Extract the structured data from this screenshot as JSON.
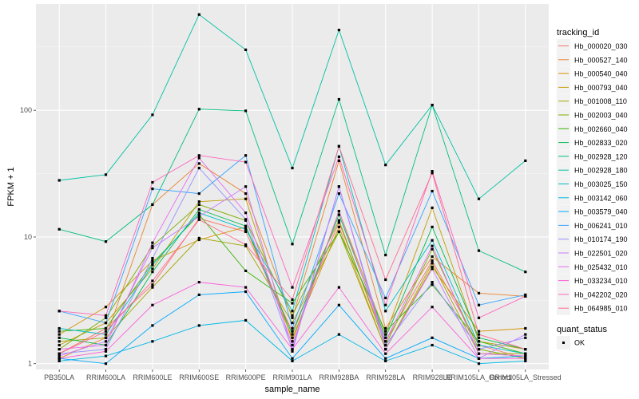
{
  "chart_data": {
    "type": "line",
    "title": "",
    "xlabel": "sample_name",
    "ylabel": "FPKM + 1",
    "yscale": "log10",
    "ylim": [
      0.9,
      690
    ],
    "yticks": [
      {
        "value": 1,
        "label": "1"
      },
      {
        "value": 10,
        "label": "10"
      },
      {
        "value": 100,
        "label": "100"
      }
    ],
    "grid": true,
    "legend_position": "right",
    "categories": [
      "PB350LA",
      "RRIM600LA",
      "RRIM600LE",
      "RRIM600SE",
      "RRIM600PE",
      "RRIM901LA",
      "RRIM928BA",
      "RRIM928LA",
      "RRIM928LE",
      "RRIM105LA_Control",
      "RRIM105LA_Stressed"
    ],
    "series": [
      {
        "name": "Hb_000020_030",
        "color": "#F8766D",
        "values": [
          1.2,
          1.9,
          4.2,
          14,
          11,
          1.8,
          13,
          1.5,
          6.5,
          1.4,
          1.1
        ]
      },
      {
        "name": "Hb_000527_140",
        "color": "#EA8331",
        "values": [
          1.1,
          1.6,
          18,
          38,
          22,
          2.3,
          40,
          1.9,
          7,
          3.6,
          3.4
        ]
      },
      {
        "name": "Hb_000540_040",
        "color": "#D89000",
        "values": [
          1.7,
          2.8,
          6.5,
          9.5,
          12,
          1.6,
          12,
          1.3,
          5.8,
          1.8,
          1.9
        ]
      },
      {
        "name": "Hb_000793_040",
        "color": "#C09B00",
        "values": [
          1.4,
          2.1,
          5.6,
          19,
          20,
          1.5,
          16,
          1.7,
          17,
          1.5,
          1.3
        ]
      },
      {
        "name": "Hb_001008_110",
        "color": "#A3A500",
        "values": [
          1.5,
          1.6,
          4,
          9.8,
          8.5,
          2.1,
          11,
          1.3,
          6.2,
          1.2,
          1.2
        ]
      },
      {
        "name": "Hb_002003_040",
        "color": "#7CAE00",
        "values": [
          1.3,
          2.3,
          8.5,
          18,
          13.5,
          2.4,
          13.5,
          1.4,
          8,
          1.3,
          1.1
        ]
      },
      {
        "name": "Hb_002660_040",
        "color": "#39B600",
        "values": [
          1.8,
          1.9,
          6.2,
          15,
          5.4,
          3,
          11,
          1.8,
          4.2,
          1.5,
          1.2
        ]
      },
      {
        "name": "Hb_002833_020",
        "color": "#00BB4E",
        "values": [
          1.6,
          1.4,
          5.3,
          16.5,
          12.2,
          1.7,
          15,
          1.6,
          12,
          1.6,
          1.3
        ]
      },
      {
        "name": "Hb_002928_120",
        "color": "#00BF7D",
        "values": [
          11.5,
          9.2,
          18,
          102,
          99,
          8.8,
          122,
          7.2,
          110,
          7.8,
          5.3
        ]
      },
      {
        "name": "Hb_002928_180",
        "color": "#00C1A3",
        "values": [
          28,
          31,
          92,
          570,
          300,
          35,
          430,
          37,
          110,
          20,
          40
        ]
      },
      {
        "name": "Hb_003025_150",
        "color": "#00BFC4",
        "values": [
          1.9,
          1.7,
          6,
          15.5,
          11.5,
          2.6,
          52,
          2.6,
          9.4,
          1.4,
          1.2
        ]
      },
      {
        "name": "Hb_003142_060",
        "color": "#00B8E7",
        "values": [
          1.05,
          1.15,
          1.5,
          2,
          2.2,
          1.05,
          1.7,
          1.05,
          1.4,
          1,
          1.05
        ]
      },
      {
        "name": "Hb_003579_040",
        "color": "#00A9FF",
        "values": [
          1.1,
          1,
          2,
          3.5,
          3.7,
          1.1,
          2.9,
          1.1,
          1.6,
          1.1,
          1.15
        ]
      },
      {
        "name": "Hb_006241_010",
        "color": "#35A2FF",
        "values": [
          2.6,
          2.1,
          24,
          22,
          44,
          1.9,
          22,
          3.3,
          23,
          2.9,
          3.5
        ]
      },
      {
        "name": "Hb_010174_190",
        "color": "#9590FF",
        "values": [
          1.2,
          1.3,
          6.8,
          35,
          13.8,
          1.3,
          25,
          1.4,
          4.4,
          1.3,
          1.6
        ]
      },
      {
        "name": "Hb_022501_020",
        "color": "#C77CFF",
        "values": [
          1.15,
          1.5,
          8.2,
          14.5,
          25,
          1.25,
          25,
          1.3,
          5.6,
          1.1,
          1.7
        ]
      },
      {
        "name": "Hb_025432_010",
        "color": "#E76BF3",
        "values": [
          1.3,
          1.4,
          9,
          42,
          15.5,
          1.4,
          16,
          1.5,
          8.5,
          1.2,
          1.15
        ]
      },
      {
        "name": "Hb_033234_010",
        "color": "#FA62DB",
        "values": [
          1.1,
          1.25,
          2.9,
          4.4,
          4,
          1.3,
          4,
          1.2,
          2.8,
          1.1,
          1.1
        ]
      },
      {
        "name": "Hb_042202_020",
        "color": "#FF62BC",
        "values": [
          2.6,
          2.4,
          27,
          44,
          39,
          4,
          43,
          2.9,
          33,
          2.3,
          3.4
        ]
      },
      {
        "name": "Hb_064985_010",
        "color": "#FF6C91",
        "values": [
          1.2,
          1.8,
          4.5,
          13.7,
          8.7,
          3.2,
          52,
          4.6,
          32,
          1.7,
          1.3
        ]
      }
    ]
  },
  "legend": {
    "title": "tracking_id"
  },
  "quant_legend": {
    "title": "quant_status",
    "label": "OK"
  }
}
